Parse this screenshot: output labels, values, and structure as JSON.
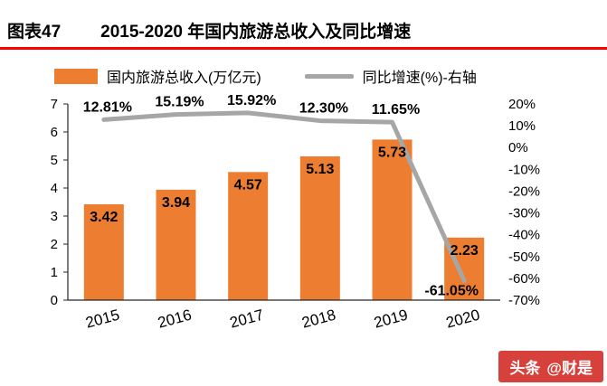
{
  "header": {
    "label": "图表47",
    "title": "2015-2020 年国内旅游总收入及同比增速"
  },
  "legend": {
    "bar_label": "国内旅游总收入(万亿元)",
    "line_label": "同比增速(%)-右轴"
  },
  "watermark": {
    "brand": "头条",
    "handle": "@财是"
  },
  "colors": {
    "accent_red": "#FE0000",
    "bar_orange": "#ED7D31",
    "line_gray": "#A6A6A6",
    "watermark_red": "#D6413B"
  },
  "chart_data": {
    "type": "bar",
    "title": "2015-2020 年国内旅游总收入及同比增速",
    "categories": [
      "2015",
      "2016",
      "2017",
      "2018",
      "2019",
      "2020"
    ],
    "series": [
      {
        "name": "国内旅游总收入(万亿元)",
        "type": "bar",
        "axis": "left",
        "color": "#ED7D31",
        "values": [
          3.42,
          3.94,
          4.57,
          5.13,
          5.73,
          2.23
        ]
      },
      {
        "name": "同比增速(%)-右轴",
        "type": "line",
        "axis": "right",
        "color": "#A6A6A6",
        "values": [
          12.81,
          15.19,
          15.92,
          12.3,
          11.65,
          -61.05
        ]
      }
    ],
    "bar_labels": [
      "3.42",
      "3.94",
      "4.57",
      "5.13",
      "5.73",
      "2.23"
    ],
    "line_labels": [
      "12.81%",
      "15.19%",
      "15.92%",
      "12.30%",
      "11.65%",
      "-61.05%"
    ],
    "left_axis": {
      "min": 0,
      "max": 7,
      "ticks": [
        0,
        1,
        2,
        3,
        4,
        5,
        6,
        7
      ]
    },
    "right_axis": {
      "min": -70,
      "max": 20,
      "tick_values": [
        20,
        10,
        0,
        -10,
        -20,
        -30,
        -40,
        -50,
        -60,
        -70
      ],
      "tick_labels": [
        "20%",
        "10%",
        "0%",
        "-10%",
        "-20%",
        "-30%",
        "-40%",
        "-50%",
        "-60%",
        "-70%"
      ]
    },
    "grid": false,
    "legend_position": "top"
  }
}
